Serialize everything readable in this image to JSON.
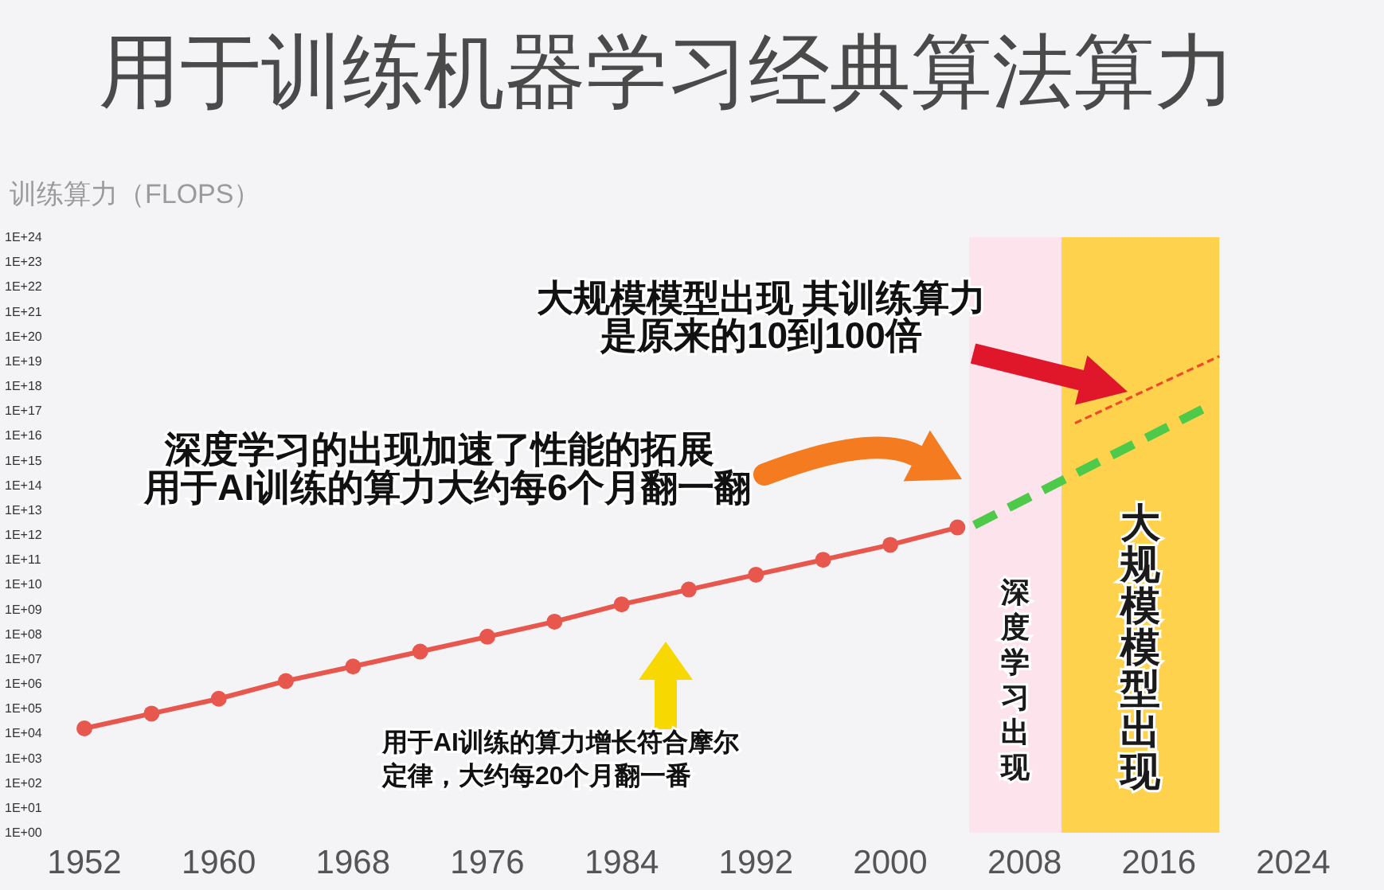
{
  "chart_data": {
    "type": "line",
    "title": "用于训练机器学习经典算法算力",
    "ylabel": "训练算力（FLOPS）",
    "log": true,
    "xlim": [
      1952,
      2024
    ],
    "xticks": [
      1952,
      1960,
      1968,
      1976,
      1984,
      1992,
      2000,
      2008,
      2016,
      2024
    ],
    "ylim": [
      1,
      1e+24
    ],
    "yticks": [
      {
        "value": 1,
        "label": "1E+00"
      },
      {
        "value": 10.0,
        "label": "1E+01"
      },
      {
        "value": 100.0,
        "label": "1E+02"
      },
      {
        "value": 1000.0,
        "label": "1E+03"
      },
      {
        "value": 10000.0,
        "label": "1E+04"
      },
      {
        "value": 100000.0,
        "label": "1E+05"
      },
      {
        "value": 1000000.0,
        "label": "1E+06"
      },
      {
        "value": 10000000.0,
        "label": "1E+07"
      },
      {
        "value": 100000000.0,
        "label": "1E+08"
      },
      {
        "value": 1000000000.0,
        "label": "1E+09"
      },
      {
        "value": 10000000000.0,
        "label": "1E+10"
      },
      {
        "value": 100000000000.0,
        "label": "1E+11"
      },
      {
        "value": 1000000000000.0,
        "label": "1E+12"
      },
      {
        "value": 10000000000000.0,
        "label": "1E+13"
      },
      {
        "value": 100000000000000.0,
        "label": "1E+14"
      },
      {
        "value": 1000000000000000.0,
        "label": "1E+15"
      },
      {
        "value": 1e+16,
        "label": "1E+16"
      },
      {
        "value": 1e+17,
        "label": "1E+17"
      },
      {
        "value": 1e+18,
        "label": "1E+18"
      },
      {
        "value": 1e+19,
        "label": "1E+19"
      },
      {
        "value": 1e+20,
        "label": "1E+20"
      },
      {
        "value": 1e+21,
        "label": "1E+21"
      },
      {
        "value": 1e+22,
        "label": "1E+22"
      },
      {
        "value": 1e+23,
        "label": "1E+23"
      },
      {
        "value": 1e+24,
        "label": "1E+24"
      }
    ],
    "series": [
      {
        "color": "#e8574e",
        "marker": "circle",
        "line_style": "solid",
        "x": [
          1952,
          1956,
          1960,
          1964,
          1968,
          1972,
          1976,
          1980,
          1984,
          1988,
          1992,
          1996,
          2000,
          2004
        ],
        "values": [
          16000.0,
          63000.0,
          250000.0,
          1300000.0,
          5000000.0,
          20000000.0,
          79000000.0,
          320000000.0,
          1600000000.0,
          6300000000.0,
          25000000000.0,
          100000000000.0,
          400000000000.0,
          2000000000000.0
        ]
      },
      {
        "color": "#4ec94a",
        "marker": "none",
        "line_style": "dashed",
        "x": [
          2005,
          2019
        ],
        "values": [
          2500000000000.0,
          1.6e+17
        ]
      },
      {
        "color": "#ee4a26",
        "marker": "none",
        "line_style": "dashed",
        "x": [
          2011,
          2019.6
        ],
        "values": [
          3.2e+16,
          1.6e+19
        ]
      }
    ],
    "bands": [
      {
        "axis": "x",
        "from": 2004.7,
        "to": 2010.2,
        "label": "深度学习出现",
        "color": "#fde3ec"
      },
      {
        "axis": "x",
        "from": 2010.2,
        "to": 2019.6,
        "label": "大规模模型出现",
        "color": "#fed24c"
      }
    ],
    "annotations": [
      "大规模模型出现 其训练算力",
      "是原来的10到100倍",
      "深度学习的出现加速了性能的拓展",
      "用于AI训练的算力大约每6个月翻一翻",
      "用于AI训练的算力增长符合摩尔",
      "定律，大约每20个月翻一番"
    ]
  }
}
